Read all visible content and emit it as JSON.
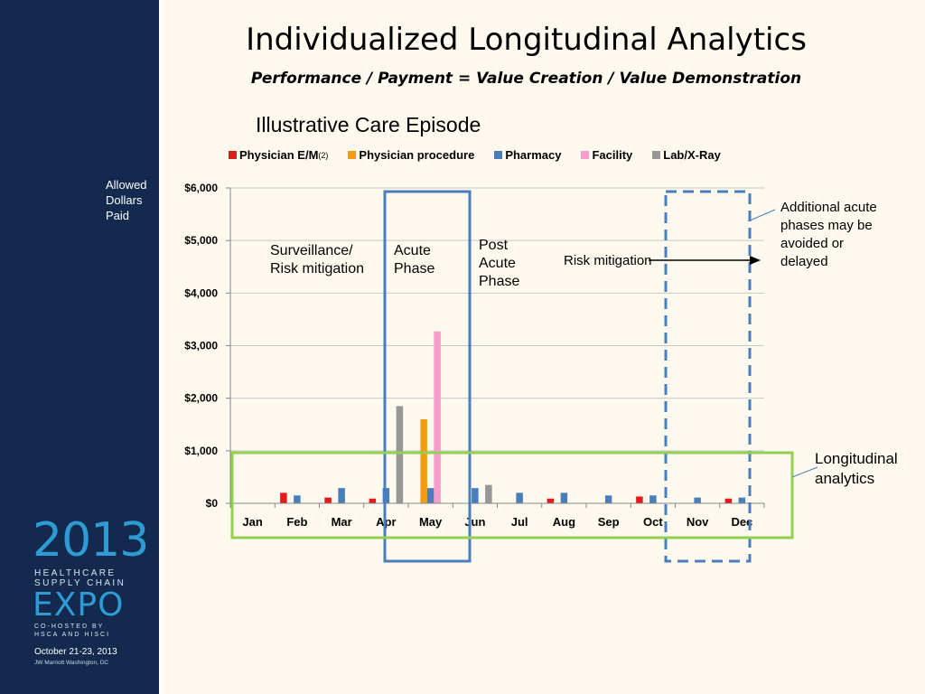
{
  "slide": {
    "title": "Individualized Longitudinal Analytics",
    "subtitle": "Performance / Payment = Value Creation / Value Demonstration",
    "logo": {
      "year": "2013",
      "line1": "HEALTHCARE",
      "line2": "SUPPLY CHAIN",
      "expo": "EXPO",
      "cohost1": "CO-HOSTED BY",
      "cohost2": "HSCA AND HISCI",
      "date": "October 21-23, 2013",
      "venue": "JW Marriott Washington, DC"
    }
  },
  "annotations": {
    "surveillance": "Surveillance/\nRisk mitigation",
    "acute": "Acute\nPhase",
    "post_acute": "Post\nAcute\nPhase",
    "risk_mitigation": "Risk mitigation",
    "additional": "Additional acute\nphases may be\navoided or\ndelayed",
    "longitudinal": "Longitudinal\n analytics"
  },
  "chart_data": {
    "type": "bar",
    "title": "Illustrative Care Episode",
    "ylabel": "Allowed\nDollars\nPaid",
    "xlabel": "",
    "ylim": [
      0,
      6000
    ],
    "yticks": [
      0,
      1000,
      2000,
      3000,
      4000,
      5000,
      6000
    ],
    "ytick_labels": [
      "$0",
      "$1,000",
      "$2,000",
      "$3,000",
      "$4,000",
      "$5,000",
      "$6,000"
    ],
    "grid": true,
    "legend_position": "top",
    "legend_superscript": "(2)",
    "categories": [
      "Jan",
      "Feb",
      "Mar",
      "Apr",
      "May",
      "Jun",
      "Jul",
      "Aug",
      "Sep",
      "Oct",
      "Nov",
      "Dec"
    ],
    "series": [
      {
        "name": "Physician E/M",
        "color": "#e31b1b",
        "values": [
          0,
          200,
          110,
          90,
          0,
          0,
          0,
          90,
          0,
          130,
          0,
          90
        ]
      },
      {
        "name": "Physician procedure",
        "color": "#f59c12",
        "values": [
          0,
          0,
          0,
          0,
          1600,
          0,
          0,
          0,
          0,
          0,
          0,
          0
        ]
      },
      {
        "name": "Pharmacy",
        "color": "#4a7ebb",
        "values": [
          0,
          150,
          290,
          290,
          290,
          290,
          200,
          200,
          150,
          150,
          110,
          110
        ]
      },
      {
        "name": "Facility",
        "color": "#f79ccb",
        "values": [
          0,
          0,
          0,
          0,
          3270,
          0,
          0,
          0,
          0,
          0,
          0,
          0
        ]
      },
      {
        "name": "Lab/X-Ray",
        "color": "#979797",
        "values": [
          0,
          0,
          0,
          1850,
          0,
          350,
          0,
          0,
          0,
          0,
          0,
          0
        ]
      }
    ],
    "highlight_colors": {
      "acute_box": "#4a7ebb",
      "longitudinal_box": "#92d050",
      "arrow": "#000000"
    }
  }
}
